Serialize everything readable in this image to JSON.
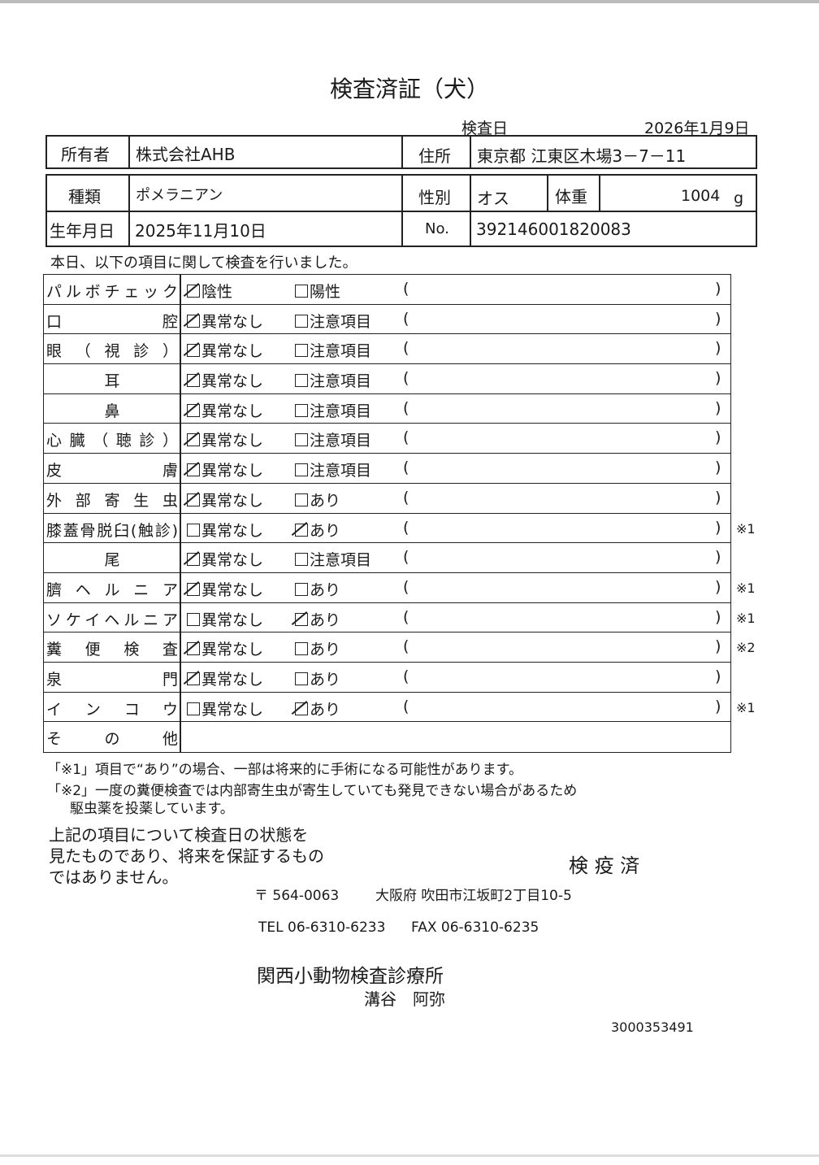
{
  "title": "検査済証（犬）",
  "exam_date": {
    "label": "検査日",
    "value": "2026年1月9日"
  },
  "owner": {
    "label": "所有者",
    "value": "株式会社AHB"
  },
  "address": {
    "label": "住所",
    "value": "東京都 江東区木場3－7－11"
  },
  "breed": {
    "label": "種類",
    "value": "ポメラニアン"
  },
  "sex": {
    "label": "性別",
    "value": "オス"
  },
  "weight": {
    "label": "体重",
    "value": "1004",
    "unit": "g"
  },
  "birth": {
    "label": "生年月日",
    "value": "2025年11月10日"
  },
  "number": {
    "label": "No.",
    "value": "392146001820083"
  },
  "intro": "本日、以下の項目に関して検査を行いました。",
  "paren_open": "(",
  "paren_close": ")",
  "checklist": [
    {
      "label": "パルボチェック",
      "opt1": "陰性",
      "opt2": "陽性",
      "checked": 1,
      "note": ""
    },
    {
      "label": "口腔",
      "opt1": "異常なし",
      "opt2": "注意項目",
      "checked": 1,
      "note": ""
    },
    {
      "label": "眼（視診）",
      "opt1": "異常なし",
      "opt2": "注意項目",
      "checked": 1,
      "note": ""
    },
    {
      "label": "耳",
      "opt1": "異常なし",
      "opt2": "注意項目",
      "checked": 1,
      "note": ""
    },
    {
      "label": "鼻",
      "opt1": "異常なし",
      "opt2": "注意項目",
      "checked": 1,
      "note": ""
    },
    {
      "label": "心臓（聴診）",
      "opt1": "異常なし",
      "opt2": "注意項目",
      "checked": 1,
      "note": ""
    },
    {
      "label": "皮膚",
      "opt1": "異常なし",
      "opt2": "注意項目",
      "checked": 1,
      "note": ""
    },
    {
      "label": "外部寄生虫",
      "opt1": "異常なし",
      "opt2": "あり",
      "checked": 1,
      "note": ""
    },
    {
      "label": "膝蓋骨脱臼(触診)",
      "opt1": "異常なし",
      "opt2": "あり",
      "checked": 2,
      "note": "※1"
    },
    {
      "label": "尾",
      "opt1": "異常なし",
      "opt2": "注意項目",
      "checked": 1,
      "note": ""
    },
    {
      "label": "臍ヘルニア",
      "opt1": "異常なし",
      "opt2": "あり",
      "checked": 1,
      "note": "※1"
    },
    {
      "label": "ソケイヘルニア",
      "opt1": "異常なし",
      "opt2": "あり",
      "checked": 2,
      "note": "※1"
    },
    {
      "label": "糞便検査",
      "opt1": "異常なし",
      "opt2": "あり",
      "checked": 1,
      "note": "※2"
    },
    {
      "label": "泉門",
      "opt1": "異常なし",
      "opt2": "あり",
      "checked": 1,
      "note": ""
    },
    {
      "label": "インコウ",
      "opt1": "異常なし",
      "opt2": "あり",
      "checked": 2,
      "note": "※1"
    }
  ],
  "other_label": "その他",
  "footnote1": "「※1」項目で“あり”の場合、一部は将来的に手術になる可能性があります。",
  "footnote2a": "「※2」一度の糞便検査では内部寄生虫が寄生していても発見できない場合があるため",
  "footnote2b": "駆虫薬を投薬しています。",
  "disclaimer": [
    "上記の項目について検査日の状態を",
    "見たものであり、将来を保証するもの",
    "ではありません。"
  ],
  "stamp": "検 疫 済",
  "clinic": {
    "postal": "〒 564-0063",
    "address": "大阪府 吹田市江坂町2丁目10-5",
    "tel": "TEL 06-6310-6233",
    "fax": "FAX 06-6310-6235",
    "name": "関西小動物検査診療所",
    "person": "溝谷　阿弥"
  },
  "doc_id": "3000353491"
}
